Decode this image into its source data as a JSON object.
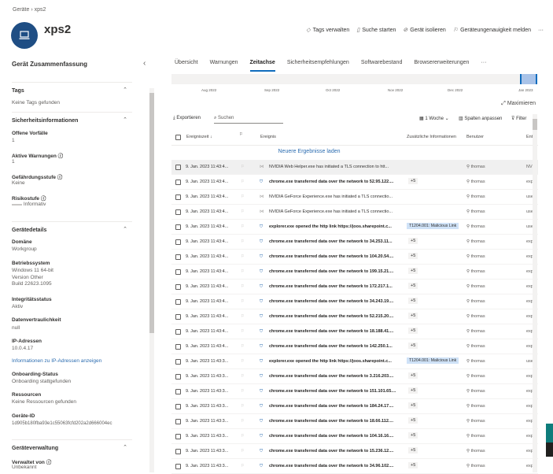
{
  "breadcrumb": {
    "root": "Geräte",
    "current": "xps2"
  },
  "device": {
    "name": "xps2",
    "icon": "laptop-icon"
  },
  "actions": [
    {
      "label": "Tags verwalten",
      "icon": "tag-icon"
    },
    {
      "label": "Suche starten",
      "icon": "search-doc-icon"
    },
    {
      "label": "Gerät isolieren",
      "icon": "block-icon"
    },
    {
      "label": "Geräteungenauigkeit melden",
      "icon": "flag-report-icon"
    },
    {
      "label": "···",
      "icon": "more-icon"
    }
  ],
  "left": {
    "title": "Gerät Zusammenfassung",
    "tags": {
      "title": "Tags",
      "value": "Keine Tags gefunden"
    },
    "security": {
      "title": "Sicherheitsinformationen",
      "open_incidents_label": "Offene Vorfälle",
      "open_incidents": "1",
      "active_alerts_label": "Aktive Warnungen",
      "active_alerts": "1",
      "exposure_label": "Gefährdungsstufe",
      "exposure": "Keine",
      "risk_label": "Risikostufe",
      "risk": "Informativ"
    },
    "details": {
      "title": "Gerätedetails",
      "domain_label": "Domäne",
      "domain": "Workgroup",
      "os_label": "Betriebssystem",
      "os1": "Windows 11 64-bit",
      "os2": "Version Other",
      "os3": "Build 22623.1095",
      "health_label": "Integritätsstatus",
      "health": "Aktiv",
      "sensitivity_label": "Datenvertraulichkeit",
      "sensitivity": "null",
      "ip_label": "IP-Adressen",
      "ip": "10.0.4.17",
      "ip_link": "Informationen zu IP-Adressen anzeigen",
      "onboarding_label": "Onboarding-Status",
      "onboarding": "Onboarding stattgefunden",
      "resources_label": "Ressourcen",
      "resources": "Keine Ressourcen gefunden",
      "id_label": "Geräte-ID",
      "id": "1d905b180fba93e1c55063fcfd202a2d666004ec"
    },
    "management": {
      "title": "Geräteverwaltung",
      "managed_label": "Verwaltet von",
      "managed": "Unbekannt"
    }
  },
  "tabs": [
    "Übersicht",
    "Warnungen",
    "Zeitachse",
    "Sicherheitsempfehlungen",
    "Softwarebestand",
    "Browsererweiterungen",
    "···"
  ],
  "active_tab": "Zeitachse",
  "timeline": {
    "months": [
      "Aug 2022",
      "Sep 2022",
      "Oct 2022",
      "Nov 2022",
      "Dec 2022",
      "Jan 2023"
    ],
    "maximize": "Maximieren"
  },
  "toolbar": {
    "export": "Exportieren",
    "search_placeholder": "Suchen",
    "range": "1 Woche",
    "columns": "Spalten anpassen",
    "filter": "Filter"
  },
  "table": {
    "headers": {
      "time": "Ereigniszeit ↓",
      "event": "Ereignis",
      "extra": "Zusätzliche Informationen",
      "user": "Benutzer",
      "entity": "Ent"
    },
    "newer": "Neuere Ergebnisse laden",
    "rows": [
      {
        "time": "9. Jan. 2023 11:43:4...",
        "event": "NVIDIA Web Helper.exe has initiated a TLS connection to htt...",
        "extra": "",
        "user": "thomas",
        "entity": "NV",
        "type": "net"
      },
      {
        "time": "9. Jan. 2023 11:43:4...",
        "event": "chrome.exe transferred data over the network to 52.95.122....",
        "extra": "+5",
        "user": "thomas",
        "entity": "exp",
        "type": "shield"
      },
      {
        "time": "9. Jan. 2023 11:43:4...",
        "event": "NVIDIA GeForce Experience.exe has initiated a TLS connectio...",
        "extra": "",
        "user": "thomas",
        "entity": "use",
        "type": "net"
      },
      {
        "time": "9. Jan. 2023 11:43:4...",
        "event": "NVIDIA GeForce Experience.exe has initiated a TLS connectio...",
        "extra": "",
        "user": "thomas",
        "entity": "use",
        "type": "net"
      },
      {
        "time": "9. Jan. 2023 11:43:4...",
        "event": "explorer.exe opened the http link https://joos.sharepoint.c...",
        "extra": "T1204.001: Malicious Link",
        "user": "thomas",
        "entity": "use",
        "type": "shield"
      },
      {
        "time": "9. Jan. 2023 11:43:4...",
        "event": "chrome.exe transferred data over the network to 34.253.11...",
        "extra": "+5",
        "user": "thomas",
        "entity": "exp",
        "type": "shield"
      },
      {
        "time": "9. Jan. 2023 11:43:4...",
        "event": "chrome.exe transferred data over the network to 104.20.54....",
        "extra": "+5",
        "user": "thomas",
        "entity": "exp",
        "type": "shield"
      },
      {
        "time": "9. Jan. 2023 11:43:4...",
        "event": "chrome.exe transferred data over the network to 199.15.21....",
        "extra": "+5",
        "user": "thomas",
        "entity": "exp",
        "type": "shield"
      },
      {
        "time": "9. Jan. 2023 11:43:4...",
        "event": "chrome.exe transferred data over the network to 172.217.1...",
        "extra": "+5",
        "user": "thomas",
        "entity": "exp",
        "type": "shield"
      },
      {
        "time": "9. Jan. 2023 11:43:4...",
        "event": "chrome.exe transferred data over the network to 34.243.19....",
        "extra": "+5",
        "user": "thomas",
        "entity": "exp",
        "type": "shield"
      },
      {
        "time": "9. Jan. 2023 11:43:4...",
        "event": "chrome.exe transferred data over the network to 52.215.20....",
        "extra": "+5",
        "user": "thomas",
        "entity": "exp",
        "type": "shield"
      },
      {
        "time": "9. Jan. 2023 11:43:4...",
        "event": "chrome.exe transferred data over the network to 18.188.41....",
        "extra": "+5",
        "user": "thomas",
        "entity": "exp",
        "type": "shield"
      },
      {
        "time": "9. Jan. 2023 11:43:4...",
        "event": "chrome.exe transferred data over the network to 142.250.1...",
        "extra": "+5",
        "user": "thomas",
        "entity": "exp",
        "type": "shield"
      },
      {
        "time": "9. Jan. 2023 11:43:3...",
        "event": "explorer.exe opened the http link https://joos.sharepoint.c...",
        "extra": "T1204.001: Malicious Link",
        "user": "thomas",
        "entity": "use",
        "type": "shield"
      },
      {
        "time": "9. Jan. 2023 11:43:3...",
        "event": "chrome.exe transferred data over the network to 3.216.203....",
        "extra": "+5",
        "user": "thomas",
        "entity": "exp",
        "type": "shield"
      },
      {
        "time": "9. Jan. 2023 11:43:3...",
        "event": "chrome.exe transferred data over the network to 151.101.65....",
        "extra": "+5",
        "user": "thomas",
        "entity": "exp",
        "type": "shield"
      },
      {
        "time": "9. Jan. 2023 11:43:3...",
        "event": "chrome.exe transferred data over the network to 184.24.17....",
        "extra": "+5",
        "user": "thomas",
        "entity": "exp",
        "type": "shield"
      },
      {
        "time": "9. Jan. 2023 11:43:3...",
        "event": "chrome.exe transferred data over the network to 18.66.112....",
        "extra": "+5",
        "user": "thomas",
        "entity": "exp",
        "type": "shield"
      },
      {
        "time": "9. Jan. 2023 11:43:3...",
        "event": "chrome.exe transferred data over the network to 104.16.16....",
        "extra": "+5",
        "user": "thomas",
        "entity": "exp",
        "type": "shield"
      },
      {
        "time": "9. Jan. 2023 11:43:3...",
        "event": "chrome.exe transferred data over the network to 15.236.12....",
        "extra": "+5",
        "user": "thomas",
        "entity": "exp",
        "type": "shield"
      },
      {
        "time": "9. Jan. 2023 11:43:3...",
        "event": "chrome.exe transferred data over the network to 34.96.102....",
        "extra": "+5",
        "user": "thomas",
        "entity": "exp",
        "type": "shield"
      }
    ]
  }
}
